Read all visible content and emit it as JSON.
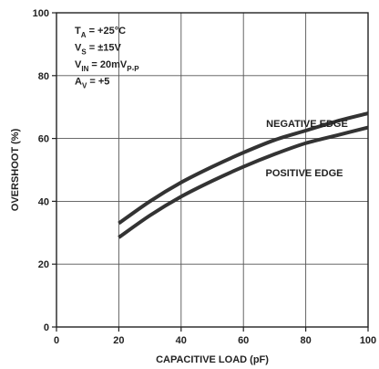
{
  "chart_data": {
    "type": "line",
    "title": "",
    "xlabel": "CAPACITIVE LOAD (pF)",
    "ylabel": "OVERSHOOT (%)",
    "xlim": [
      0,
      100
    ],
    "ylim": [
      0,
      100
    ],
    "x_ticks": [
      0,
      20,
      40,
      60,
      80,
      100
    ],
    "y_ticks": [
      0,
      20,
      40,
      60,
      80,
      100
    ],
    "grid": true,
    "conditions": [
      {
        "main": "T",
        "sub": "A",
        "rest": " = +25°C"
      },
      {
        "main": "V",
        "sub": "S",
        "rest": " = ±15V"
      },
      {
        "main": "V",
        "sub": "IN",
        "rest": " = 20mV",
        "trail_sub": "P-P"
      },
      {
        "main": "A",
        "sub": "V",
        "rest": " = +5"
      }
    ],
    "series": [
      {
        "name": "NEGATIVE EDGE",
        "color": "#333333",
        "x": [
          20,
          30,
          40,
          50,
          60,
          70,
          80,
          90,
          100
        ],
        "y": [
          33,
          40,
          46,
          51,
          55.5,
          59.5,
          62.5,
          65.5,
          68
        ]
      },
      {
        "name": "POSITIVE EDGE",
        "color": "#333333",
        "x": [
          20,
          30,
          40,
          50,
          60,
          70,
          80,
          90,
          100
        ],
        "y": [
          28.5,
          35.5,
          41.5,
          46.5,
          51,
          55,
          58.5,
          61,
          63.5
        ]
      }
    ]
  }
}
